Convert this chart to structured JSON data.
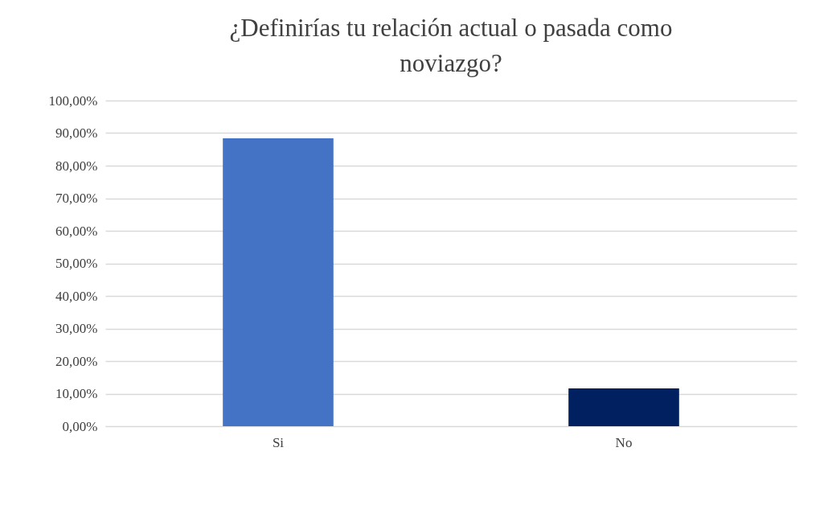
{
  "chart_data": {
    "type": "bar",
    "title": "¿Definirías tu relación actual o pasada como noviazgo?",
    "categories": [
      "Si",
      "No"
    ],
    "values": [
      88.4,
      11.6
    ],
    "colors": [
      "#4472c4",
      "#002060"
    ],
    "ylim": [
      0,
      100
    ],
    "yticks": [
      {
        "value": 0,
        "label": "0,00%"
      },
      {
        "value": 10,
        "label": "10,00%"
      },
      {
        "value": 20,
        "label": "20,00%"
      },
      {
        "value": 30,
        "label": "30,00%"
      },
      {
        "value": 40,
        "label": "40,00%"
      },
      {
        "value": 50,
        "label": "50,00%"
      },
      {
        "value": 60,
        "label": "60,00%"
      },
      {
        "value": 70,
        "label": "70,00%"
      },
      {
        "value": 80,
        "label": "80,00%"
      },
      {
        "value": 90,
        "label": "90,00%"
      },
      {
        "value": 100,
        "label": "100,00%"
      }
    ],
    "grid": "y"
  }
}
